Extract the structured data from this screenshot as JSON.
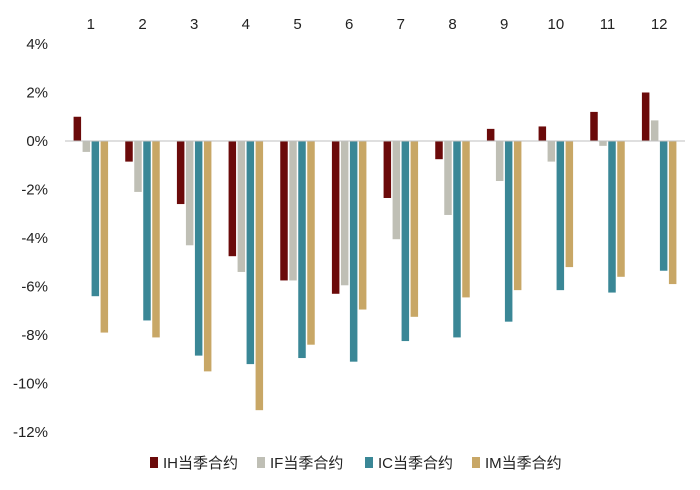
{
  "chart_data": {
    "type": "bar",
    "title": "",
    "xlabel": "",
    "ylabel": "",
    "categories": [
      "1",
      "2",
      "3",
      "4",
      "5",
      "6",
      "7",
      "8",
      "9",
      "10",
      "11",
      "12"
    ],
    "y_unit": "%",
    "ylim": [
      -12,
      4
    ],
    "y_ticks": [
      4,
      2,
      0,
      -2,
      -4,
      -6,
      -8,
      -10,
      -12
    ],
    "y_tick_labels": [
      "4%",
      "2%",
      "0%",
      "-2%",
      "-4%",
      "-6%",
      "-8%",
      "-10%",
      "-12%"
    ],
    "x_axis_position": "top",
    "grid": false,
    "legend_position": "bottom",
    "series": [
      {
        "name": "IH当季合约",
        "color": "#6b0a0a",
        "values": [
          1.0,
          -0.85,
          -2.6,
          -4.75,
          -5.75,
          -6.3,
          -2.35,
          -0.75,
          0.5,
          0.6,
          1.2,
          2.0
        ]
      },
      {
        "name": "IF当季合约",
        "color": "#bfbfb5",
        "values": [
          -0.45,
          -2.1,
          -4.3,
          -5.4,
          -5.75,
          -5.95,
          -4.05,
          -3.05,
          -1.65,
          -0.85,
          -0.2,
          0.85
        ]
      },
      {
        "name": "IC当季合约",
        "color": "#3a8796",
        "values": [
          -6.4,
          -7.4,
          -8.85,
          -9.2,
          -8.95,
          -9.1,
          -8.25,
          -8.1,
          -7.45,
          -6.15,
          -6.25,
          -5.35
        ]
      },
      {
        "name": "IM当季合约",
        "color": "#c8a766",
        "values": [
          -7.9,
          -8.1,
          -9.5,
          -11.1,
          -8.4,
          -6.95,
          -7.25,
          -6.45,
          -6.15,
          -5.2,
          -5.6,
          -5.9
        ]
      }
    ]
  }
}
